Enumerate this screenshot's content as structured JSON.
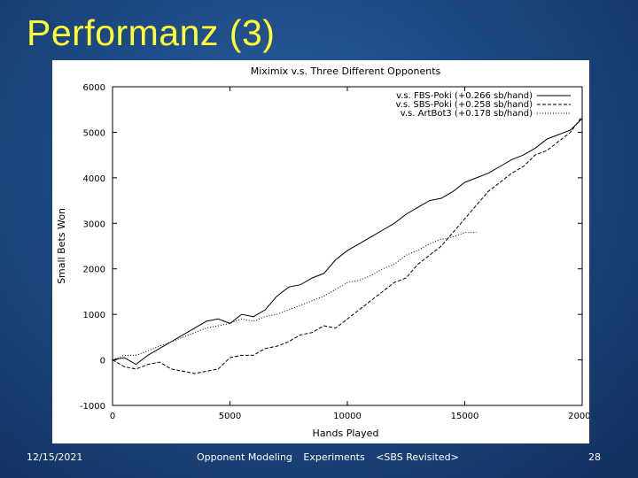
{
  "slide": {
    "title": "Performanz (3)",
    "footer_date": "12/15/2021",
    "footer_items": [
      "Opponent Modeling",
      "Experiments",
      "<SBS Revisited>"
    ],
    "page_number": "28"
  },
  "chart_data": {
    "type": "line",
    "title": "Miximix v.s. Three Different Opponents",
    "xlabel": "Hands Played",
    "ylabel": "Small Bets Won",
    "xlim": [
      0,
      20000
    ],
    "ylim": [
      -1000,
      6000
    ],
    "xticks": [
      0,
      5000,
      10000,
      15000,
      20000
    ],
    "yticks": [
      -1000,
      0,
      1000,
      2000,
      3000,
      4000,
      5000,
      6000
    ],
    "grid": false,
    "legend_position": "top-right",
    "series": [
      {
        "name": "v.s. FBS-Poki (+0.266 sb/hand)",
        "style": "solid",
        "x": [
          0,
          500,
          1000,
          1500,
          2000,
          2500,
          3000,
          3500,
          4000,
          4500,
          5000,
          5500,
          6000,
          6500,
          7000,
          7500,
          8000,
          8500,
          9000,
          9500,
          10000,
          10500,
          11000,
          11500,
          12000,
          12500,
          13000,
          13500,
          14000,
          14500,
          15000,
          15500,
          16000,
          16500,
          17000,
          17500,
          18000,
          18500,
          19000,
          19500,
          20000
        ],
        "y": [
          0,
          50,
          -100,
          100,
          250,
          400,
          550,
          700,
          850,
          900,
          800,
          1000,
          950,
          1100,
          1400,
          1600,
          1650,
          1800,
          1900,
          2200,
          2400,
          2550,
          2700,
          2850,
          3000,
          3200,
          3350,
          3500,
          3550,
          3700,
          3900,
          4000,
          4100,
          4250,
          4400,
          4500,
          4650,
          4850,
          4950,
          5050,
          5300
        ]
      },
      {
        "name": "v.s. SBS-Poki (+0.258 sb/hand)",
        "style": "dashed",
        "x": [
          0,
          500,
          1000,
          1500,
          2000,
          2500,
          3000,
          3500,
          4000,
          4500,
          5000,
          5500,
          6000,
          6500,
          7000,
          7500,
          8000,
          8500,
          9000,
          9500,
          10000,
          10500,
          11000,
          11500,
          12000,
          12500,
          13000,
          13500,
          14000,
          14500,
          15000,
          15500,
          16000,
          16500,
          17000,
          17500,
          18000,
          18500,
          19000,
          19500,
          20000
        ],
        "y": [
          0,
          -150,
          -200,
          -100,
          -50,
          -200,
          -250,
          -300,
          -250,
          -200,
          50,
          100,
          100,
          250,
          300,
          400,
          550,
          600,
          750,
          700,
          900,
          1100,
          1300,
          1500,
          1700,
          1800,
          2100,
          2300,
          2500,
          2800,
          3100,
          3400,
          3700,
          3900,
          4100,
          4250,
          4500,
          4600,
          4800,
          5000,
          5350
        ]
      },
      {
        "name": "v.s. ArtBot3 (+0.178 sb/hand)",
        "style": "dotted",
        "x": [
          0,
          500,
          1000,
          1500,
          2000,
          2500,
          3000,
          3500,
          4000,
          4500,
          5000,
          5500,
          6000,
          6500,
          7000,
          7500,
          8000,
          8500,
          9000,
          9500,
          10000,
          10500,
          11000,
          11500,
          12000,
          12500,
          13000,
          13500,
          14000,
          14500,
          15000,
          15500
        ],
        "y": [
          0,
          100,
          100,
          200,
          300,
          400,
          500,
          600,
          700,
          750,
          800,
          900,
          850,
          950,
          1000,
          1100,
          1200,
          1300,
          1400,
          1550,
          1700,
          1750,
          1850,
          2000,
          2100,
          2300,
          2400,
          2550,
          2650,
          2700,
          2800,
          2800
        ]
      }
    ]
  }
}
